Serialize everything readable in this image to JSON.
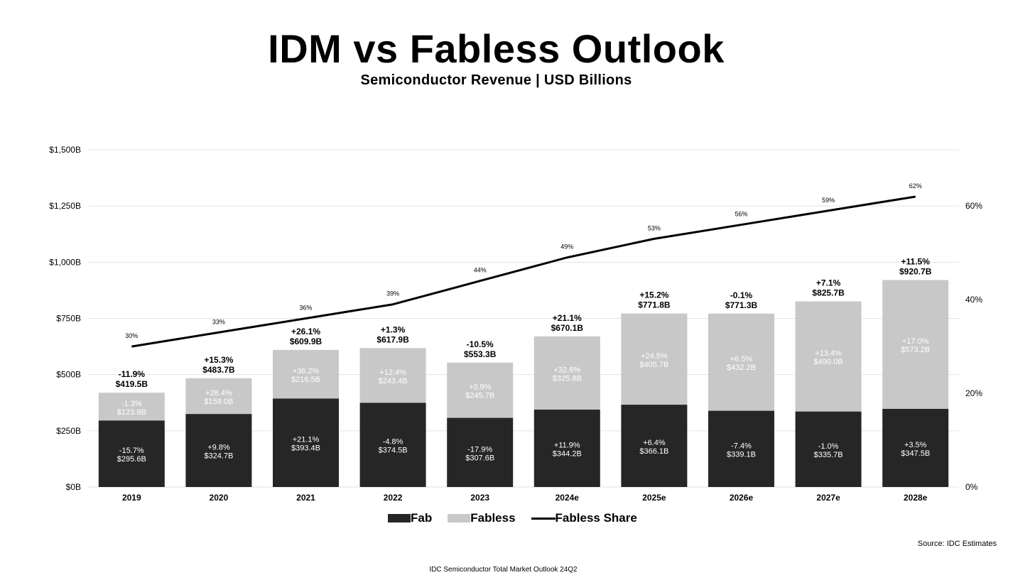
{
  "title": "IDM vs Fabless Outlook",
  "subtitle": "Semiconductor Revenue | USD Billions",
  "source": "Source: IDC Estimates",
  "footer": "IDC Semiconductor Total Market Outlook 24Q2",
  "colors": {
    "fab": "#262626",
    "fabless": "#c8c8c8",
    "line": "#000000",
    "grid": "#e3e3e3"
  },
  "legend": {
    "fab": "Fab",
    "fabless": "Fabless",
    "share": "Fabless Share"
  },
  "chart_data": {
    "type": "bar",
    "stacked": true,
    "categories": [
      "2019",
      "2020",
      "2021",
      "2022",
      "2023",
      "2024e",
      "2025e",
      "2026e",
      "2027e",
      "2028e"
    ],
    "ylim": [
      0,
      1500
    ],
    "yticks": [
      "$0B",
      "$250B",
      "$500B",
      "$750B",
      "$1,000B",
      "$1,250B",
      "$1,500B"
    ],
    "y2lim": [
      0,
      72
    ],
    "y2ticks": [
      "0%",
      "20%",
      "40%",
      "60%"
    ],
    "grid": true,
    "legend_position": "bottom",
    "series": [
      {
        "name": "Fab",
        "values": [
          295.6,
          324.7,
          393.4,
          374.5,
          307.6,
          344.2,
          366.1,
          339.1,
          335.7,
          347.5
        ],
        "value_labels": [
          "$295.6B",
          "$324.7B",
          "$393.4B",
          "$374.5B",
          "$307.6B",
          "$344.2B",
          "$366.1B",
          "$339.1B",
          "$335.7B",
          "$347.5B"
        ],
        "growth_labels": [
          "-15.7%",
          "+9.8%",
          "+21.1%",
          "-4.8%",
          "-17.9%",
          "+11.9%",
          "+6.4%",
          "-7.4%",
          "-1.0%",
          "+3.5%"
        ]
      },
      {
        "name": "Fabless",
        "values": [
          123.8,
          159.0,
          216.5,
          243.4,
          245.7,
          325.8,
          405.7,
          432.2,
          490.0,
          573.2
        ],
        "value_labels": [
          "$123.8B",
          "$159.0B",
          "$216.5B",
          "$243.4B",
          "$245.7B",
          "$325.8B",
          "$405.7B",
          "$432.2B",
          "$490.0B",
          "$573.2B"
        ],
        "growth_labels": [
          "-1.3%",
          "+28.4%",
          "+36.2%",
          "+12.4%",
          "+0.9%",
          "+32.6%",
          "+24.5%",
          "+6.5%",
          "+13.4%",
          "+17.0%"
        ]
      },
      {
        "name": "Fabless Share",
        "type": "line",
        "axis": "right",
        "values": [
          30,
          33,
          36,
          39,
          44,
          49,
          53,
          56,
          59,
          62
        ],
        "value_labels": [
          "30%",
          "33%",
          "36%",
          "39%",
          "44%",
          "49%",
          "53%",
          "56%",
          "59%",
          "62%"
        ]
      }
    ],
    "totals": {
      "values": [
        419.5,
        483.7,
        609.9,
        617.9,
        553.3,
        670.1,
        771.8,
        771.3,
        825.7,
        920.7
      ],
      "value_labels": [
        "$419.5B",
        "$483.7B",
        "$609.9B",
        "$617.9B",
        "$553.3B",
        "$670.1B",
        "$771.8B",
        "$771.3B",
        "$825.7B",
        "$920.7B"
      ],
      "growth_labels": [
        "-11.9%",
        "+15.3%",
        "+26.1%",
        "+1.3%",
        "-10.5%",
        "+21.1%",
        "+15.2%",
        "-0.1%",
        "+7.1%",
        "+11.5%"
      ]
    }
  }
}
